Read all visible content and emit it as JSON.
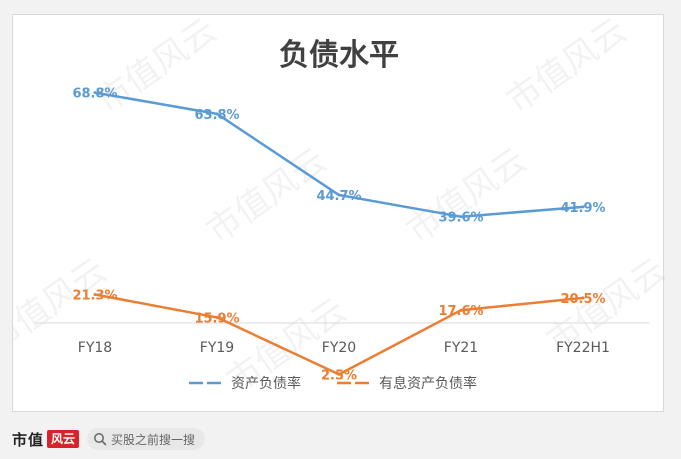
{
  "chart_data": {
    "type": "line",
    "title": "负债水平",
    "categories": [
      "FY18",
      "FY19",
      "FY20",
      "FY21",
      "FY22H1"
    ],
    "series": [
      {
        "name": "资产负债率",
        "values": [
          68.8,
          63.8,
          44.7,
          39.6,
          41.9
        ],
        "color": "#5b9bd5"
      },
      {
        "name": "有息资产负债率",
        "values": [
          21.3,
          15.9,
          2.5,
          17.6,
          20.5
        ],
        "color": "#ed7d31"
      }
    ],
    "value_suffix": "%",
    "xlabel": "",
    "ylabel": "",
    "ylim": [
      0,
      80
    ],
    "grid": false,
    "legend": "bottom",
    "data_labels": true
  },
  "watermark": {
    "text": "市值风云"
  },
  "footer": {
    "brand": "市值",
    "brand_logo": "风云",
    "search_icon": "search-icon",
    "search_text": "买股之前搜一搜"
  }
}
